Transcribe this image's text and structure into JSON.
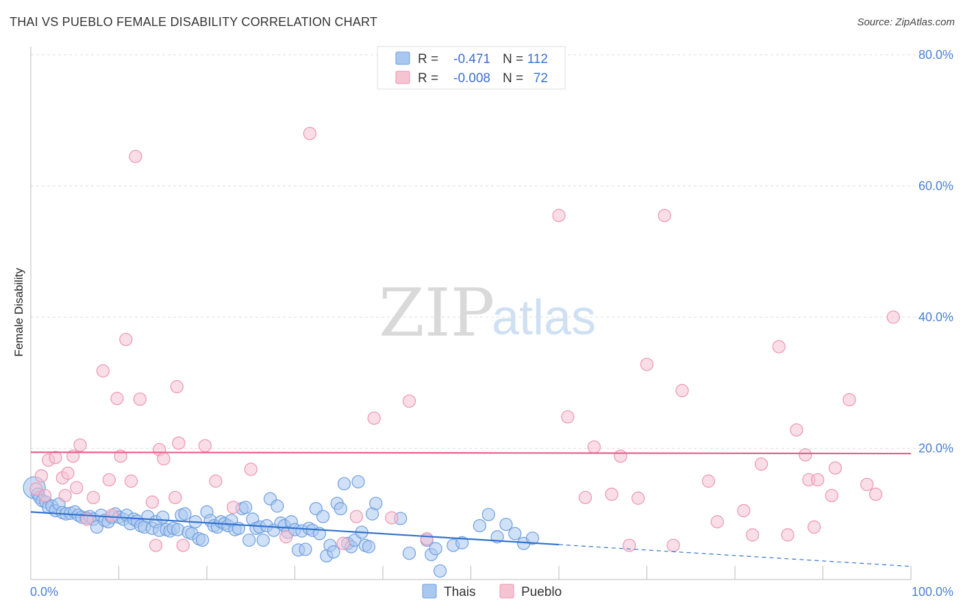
{
  "title": "THAI VS PUEBLO FEMALE DISABILITY CORRELATION CHART",
  "source": "Source: ZipAtlas.com",
  "watermark": {
    "zip": "ZIP",
    "atlas": "atlas"
  },
  "stats_legend": {
    "rows": [
      {
        "r_label": "R =",
        "r_value": "-0.471",
        "n_label": "N =",
        "n_value": "112",
        "color": "#a9c7ef"
      },
      {
        "r_label": "R =",
        "r_value": "-0.008",
        "n_label": "N =",
        "n_value": "72",
        "color": "#f6b9cc"
      }
    ]
  },
  "bottom_legend": [
    "Thais",
    "Pueblo"
  ],
  "colors": {
    "thais_fill": "#a9c7ef",
    "thais_stroke": "#6b9ee0",
    "thais_line": "#2f72d0",
    "pueblo_fill": "#f6c3d3",
    "pueblo_stroke": "#ec93b1",
    "pueblo_line": "#e75f8f",
    "grid": "#dddddd",
    "tick_label": "#4a7fd6"
  },
  "chart_data": {
    "type": "scatter",
    "title": "THAI VS PUEBLO FEMALE DISABILITY CORRELATION CHART",
    "xlabel": "",
    "ylabel": "Female Disability",
    "xlim": [
      0,
      100
    ],
    "ylim": [
      0,
      80
    ],
    "x_tick_labels": [
      "0.0%",
      "100.0%"
    ],
    "y_ticks": [
      20,
      40,
      60,
      80
    ],
    "y_tick_labels": [
      "20.0%",
      "40.0%",
      "60.0%",
      "80.0%"
    ],
    "grid": true,
    "legend_position": "top-center",
    "series": [
      {
        "name": "Thais",
        "r": -0.471,
        "n": 112,
        "trend": {
          "x0": 0,
          "y0": 10.3,
          "x_solid_end": 60,
          "x1": 100,
          "y1": 2.0
        },
        "points": [
          [
            0.4,
            14.0
          ],
          [
            0.8,
            13.0
          ],
          [
            1.0,
            12.5
          ],
          [
            1.3,
            12.0
          ],
          [
            1.7,
            11.8
          ],
          [
            2.0,
            11.0
          ],
          [
            2.4,
            11.2
          ],
          [
            2.8,
            10.5
          ],
          [
            3.2,
            11.5
          ],
          [
            3.6,
            10.2
          ],
          [
            4.0,
            10.0
          ],
          [
            4.5,
            10.1
          ],
          [
            5.0,
            10.3
          ],
          [
            5.4,
            9.8
          ],
          [
            5.8,
            9.5
          ],
          [
            6.3,
            9.4
          ],
          [
            6.7,
            9.6
          ],
          [
            7.1,
            9.2
          ],
          [
            7.5,
            8.0
          ],
          [
            8.0,
            9.8
          ],
          [
            8.4,
            9.0
          ],
          [
            8.8,
            8.8
          ],
          [
            9.2,
            9.5
          ],
          [
            9.6,
            10.0
          ],
          [
            10.0,
            9.5
          ],
          [
            10.5,
            9.2
          ],
          [
            10.9,
            9.8
          ],
          [
            11.3,
            8.5
          ],
          [
            11.7,
            9.2
          ],
          [
            12.1,
            8.9
          ],
          [
            12.5,
            8.2
          ],
          [
            12.9,
            8.0
          ],
          [
            13.3,
            9.6
          ],
          [
            13.8,
            7.8
          ],
          [
            14.2,
            8.8
          ],
          [
            14.6,
            7.5
          ],
          [
            15.0,
            9.5
          ],
          [
            15.4,
            7.6
          ],
          [
            15.8,
            7.4
          ],
          [
            16.2,
            7.8
          ],
          [
            16.7,
            7.6
          ],
          [
            17.1,
            9.8
          ],
          [
            17.5,
            10.0
          ],
          [
            17.9,
            7.2
          ],
          [
            18.3,
            7.0
          ],
          [
            18.7,
            8.8
          ],
          [
            19.1,
            6.2
          ],
          [
            19.5,
            6.0
          ],
          [
            20.0,
            10.3
          ],
          [
            20.4,
            9.0
          ],
          [
            20.8,
            8.2
          ],
          [
            21.2,
            8.0
          ],
          [
            21.6,
            8.8
          ],
          [
            22.0,
            8.5
          ],
          [
            22.4,
            8.2
          ],
          [
            22.8,
            9.0
          ],
          [
            23.2,
            7.6
          ],
          [
            23.6,
            7.8
          ],
          [
            24.0,
            10.8
          ],
          [
            24.4,
            11.0
          ],
          [
            24.8,
            6.0
          ],
          [
            25.2,
            9.2
          ],
          [
            25.6,
            7.8
          ],
          [
            26.0,
            8.0
          ],
          [
            26.4,
            6.0
          ],
          [
            26.8,
            8.2
          ],
          [
            27.2,
            12.3
          ],
          [
            27.6,
            7.5
          ],
          [
            28.0,
            11.2
          ],
          [
            28.4,
            8.6
          ],
          [
            28.8,
            8.2
          ],
          [
            29.2,
            7.2
          ],
          [
            29.6,
            8.8
          ],
          [
            30.0,
            7.6
          ],
          [
            30.4,
            4.5
          ],
          [
            30.8,
            7.4
          ],
          [
            31.2,
            4.6
          ],
          [
            31.6,
            7.8
          ],
          [
            32.0,
            7.5
          ],
          [
            32.4,
            10.8
          ],
          [
            32.8,
            7.0
          ],
          [
            33.2,
            9.6
          ],
          [
            33.6,
            3.6
          ],
          [
            34.0,
            5.2
          ],
          [
            34.4,
            4.2
          ],
          [
            34.8,
            11.6
          ],
          [
            35.2,
            10.8
          ],
          [
            35.6,
            14.6
          ],
          [
            36.0,
            5.5
          ],
          [
            36.4,
            5.0
          ],
          [
            36.8,
            6.0
          ],
          [
            37.2,
            14.9
          ],
          [
            37.6,
            7.2
          ],
          [
            38.0,
            5.2
          ],
          [
            38.4,
            5.0
          ],
          [
            38.8,
            10.0
          ],
          [
            39.2,
            11.6
          ],
          [
            42.0,
            9.3
          ],
          [
            43.0,
            4.0
          ],
          [
            45.0,
            6.0
          ],
          [
            45.5,
            3.8
          ],
          [
            46.0,
            4.7
          ],
          [
            46.5,
            1.3
          ],
          [
            48.0,
            5.2
          ],
          [
            49.0,
            5.6
          ],
          [
            51.0,
            8.2
          ],
          [
            52.0,
            9.9
          ],
          [
            53.0,
            6.5
          ],
          [
            54.0,
            8.4
          ],
          [
            55.0,
            7.0
          ],
          [
            56.0,
            5.5
          ],
          [
            57.0,
            6.3
          ]
        ]
      },
      {
        "name": "Pueblo",
        "r": -0.008,
        "n": 72,
        "trend": {
          "x0": 0,
          "y0": 19.4,
          "x1": 100,
          "y1": 19.2
        },
        "points": [
          [
            0.6,
            13.8
          ],
          [
            1.2,
            15.8
          ],
          [
            1.6,
            12.8
          ],
          [
            2.0,
            18.2
          ],
          [
            2.8,
            18.6
          ],
          [
            3.6,
            15.5
          ],
          [
            3.9,
            12.8
          ],
          [
            4.2,
            16.2
          ],
          [
            4.8,
            18.8
          ],
          [
            5.2,
            14.0
          ],
          [
            5.6,
            20.5
          ],
          [
            6.4,
            9.2
          ],
          [
            7.1,
            12.5
          ],
          [
            8.2,
            31.8
          ],
          [
            8.9,
            15.2
          ],
          [
            9.2,
            9.8
          ],
          [
            9.8,
            27.6
          ],
          [
            10.2,
            18.8
          ],
          [
            10.8,
            36.6
          ],
          [
            11.4,
            15.0
          ],
          [
            11.9,
            64.5
          ],
          [
            12.4,
            27.5
          ],
          [
            13.8,
            11.8
          ],
          [
            14.2,
            5.2
          ],
          [
            14.6,
            19.8
          ],
          [
            15.1,
            18.4
          ],
          [
            16.4,
            12.5
          ],
          [
            16.6,
            29.4
          ],
          [
            16.8,
            20.8
          ],
          [
            17.3,
            5.2
          ],
          [
            19.8,
            20.4
          ],
          [
            21.0,
            15.0
          ],
          [
            23.0,
            11.0
          ],
          [
            25.0,
            16.8
          ],
          [
            29.0,
            6.5
          ],
          [
            31.7,
            68.0
          ],
          [
            35.5,
            5.5
          ],
          [
            37.0,
            9.6
          ],
          [
            39.0,
            24.6
          ],
          [
            41.0,
            9.4
          ],
          [
            43.0,
            27.2
          ],
          [
            45.0,
            6.2
          ],
          [
            60.0,
            55.5
          ],
          [
            61.0,
            24.8
          ],
          [
            63.0,
            12.5
          ],
          [
            64.0,
            20.2
          ],
          [
            66.0,
            13.0
          ],
          [
            67.0,
            18.8
          ],
          [
            68.0,
            5.2
          ],
          [
            69.0,
            12.4
          ],
          [
            70.0,
            32.8
          ],
          [
            72.0,
            55.5
          ],
          [
            73.0,
            5.2
          ],
          [
            74.0,
            28.8
          ],
          [
            77.0,
            15.0
          ],
          [
            78.0,
            8.8
          ],
          [
            81.0,
            10.5
          ],
          [
            82.0,
            6.8
          ],
          [
            83.0,
            17.6
          ],
          [
            85.0,
            35.5
          ],
          [
            86.0,
            6.8
          ],
          [
            87.0,
            22.8
          ],
          [
            88.0,
            19.0
          ],
          [
            88.4,
            15.2
          ],
          [
            89.0,
            8.0
          ],
          [
            89.4,
            15.2
          ],
          [
            91.0,
            12.8
          ],
          [
            91.4,
            17.0
          ],
          [
            93.0,
            27.4
          ],
          [
            95.0,
            14.5
          ],
          [
            96.0,
            13.0
          ],
          [
            98.0,
            40.0
          ]
        ]
      }
    ]
  }
}
